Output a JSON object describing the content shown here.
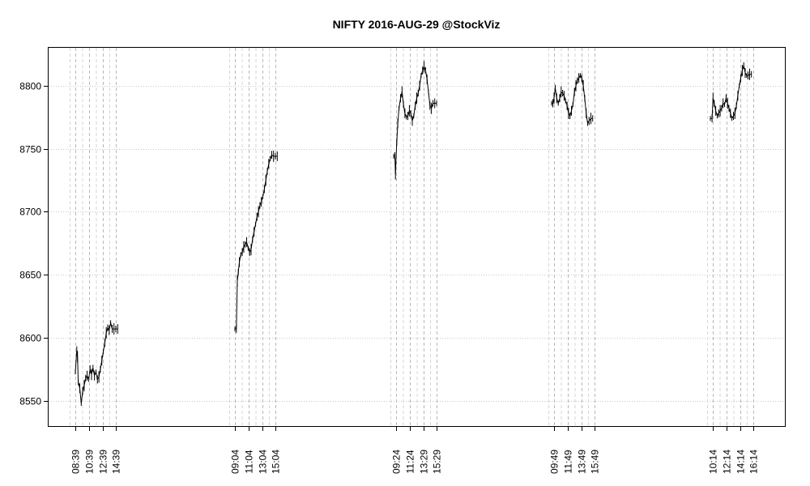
{
  "chart_data": {
    "type": "line",
    "style": "high-low price bars (intraday)",
    "title": "NIFTY 2016-AUG-29 @StockViz",
    "xlabel": "",
    "ylabel": "",
    "ylim": [
      8530,
      8830
    ],
    "yticks": [
      8550,
      8600,
      8650,
      8700,
      8750,
      8800
    ],
    "grid": true,
    "sessions": [
      {
        "labels": [
          "08:39",
          "10:39",
          "12:39",
          "14:39"
        ],
        "points": [
          [
            0.0,
            8573
          ],
          [
            1.2,
            8590
          ],
          [
            1.8,
            8585
          ],
          [
            2.4,
            8565
          ],
          [
            3.6,
            8560
          ],
          [
            4.8,
            8548
          ],
          [
            6.0,
            8558
          ],
          [
            7.2,
            8562
          ],
          [
            8.4,
            8568
          ],
          [
            9.6,
            8570
          ],
          [
            10.8,
            8567
          ],
          [
            12.0,
            8575
          ],
          [
            13.2,
            8571
          ],
          [
            14.4,
            8576
          ],
          [
            15.6,
            8570
          ],
          [
            16.8,
            8573
          ],
          [
            18.0,
            8567
          ],
          [
            19.2,
            8569
          ],
          [
            20.4,
            8575
          ],
          [
            21.6,
            8582
          ],
          [
            22.8,
            8589
          ],
          [
            24.0,
            8596
          ],
          [
            25.2,
            8604
          ],
          [
            26.4,
            8608
          ],
          [
            27.6,
            8606
          ],
          [
            28.8,
            8612
          ],
          [
            30.0,
            8607
          ],
          [
            31.5,
            8607
          ],
          [
            33.0,
            8607
          ],
          [
            34.5,
            8607
          ]
        ]
      },
      {
        "labels": [
          "09:04",
          "11:04",
          "13:04",
          "15:04"
        ],
        "points": [
          [
            0.0,
            8607
          ],
          [
            1.2,
            8607
          ],
          [
            2.0,
            8645
          ],
          [
            2.8,
            8652
          ],
          [
            3.6,
            8660
          ],
          [
            4.8,
            8666
          ],
          [
            6.0,
            8668
          ],
          [
            7.2,
            8672
          ],
          [
            8.4,
            8674
          ],
          [
            9.6,
            8676
          ],
          [
            10.8,
            8671
          ],
          [
            12.0,
            8668
          ],
          [
            13.2,
            8670
          ],
          [
            14.4,
            8678
          ],
          [
            15.6,
            8684
          ],
          [
            16.8,
            8690
          ],
          [
            18.0,
            8696
          ],
          [
            19.2,
            8700
          ],
          [
            20.4,
            8705
          ],
          [
            21.6,
            8708
          ],
          [
            22.8,
            8712
          ],
          [
            24.0,
            8718
          ],
          [
            25.2,
            8725
          ],
          [
            26.4,
            8732
          ],
          [
            27.6,
            8738
          ],
          [
            28.8,
            8742
          ],
          [
            30.0,
            8745
          ],
          [
            31.5,
            8744
          ],
          [
            33.0,
            8744
          ],
          [
            34.5,
            8744
          ]
        ]
      },
      {
        "labels": [
          "09:24",
          "11:24",
          "13:29",
          "15:29"
        ],
        "points": [
          [
            -2.0,
            8744
          ],
          [
            -1.0,
            8744
          ],
          [
            -0.5,
            8730
          ],
          [
            0.5,
            8755
          ],
          [
            1.4,
            8770
          ],
          [
            2.4,
            8782
          ],
          [
            3.6,
            8790
          ],
          [
            4.8,
            8795
          ],
          [
            6.0,
            8785
          ],
          [
            7.2,
            8778
          ],
          [
            8.4,
            8775
          ],
          [
            9.6,
            8776
          ],
          [
            10.8,
            8780
          ],
          [
            12.0,
            8778
          ],
          [
            13.2,
            8772
          ],
          [
            14.4,
            8776
          ],
          [
            15.6,
            8784
          ],
          [
            16.8,
            8790
          ],
          [
            18.0,
            8794
          ],
          [
            19.2,
            8800
          ],
          [
            20.4,
            8808
          ],
          [
            21.6,
            8812
          ],
          [
            22.8,
            8815
          ],
          [
            24.0,
            8812
          ],
          [
            25.2,
            8805
          ],
          [
            26.4,
            8795
          ],
          [
            27.6,
            8784
          ],
          [
            28.8,
            8782
          ],
          [
            30.0,
            8786
          ],
          [
            31.5,
            8786
          ],
          [
            33.0,
            8786
          ]
        ]
      },
      {
        "labels": [
          "09:49",
          "11:49",
          "13:49",
          "15:49"
        ],
        "points": [
          [
            -2.0,
            8786
          ],
          [
            -1.0,
            8786
          ],
          [
            0.0,
            8790
          ],
          [
            1.0,
            8798
          ],
          [
            2.2,
            8790
          ],
          [
            3.4,
            8786
          ],
          [
            4.6,
            8790
          ],
          [
            5.8,
            8795
          ],
          [
            7.0,
            8794
          ],
          [
            8.2,
            8792
          ],
          [
            9.4,
            8788
          ],
          [
            10.6,
            8784
          ],
          [
            11.8,
            8778
          ],
          [
            13.0,
            8776
          ],
          [
            14.2,
            8780
          ],
          [
            15.4,
            8785
          ],
          [
            16.6,
            8795
          ],
          [
            17.8,
            8800
          ],
          [
            19.0,
            8804
          ],
          [
            20.2,
            8806
          ],
          [
            21.4,
            8808
          ],
          [
            22.6,
            8806
          ],
          [
            23.8,
            8800
          ],
          [
            25.0,
            8790
          ],
          [
            26.2,
            8778
          ],
          [
            27.4,
            8770
          ],
          [
            28.6,
            8772
          ],
          [
            30.0,
            8774
          ],
          [
            31.5,
            8774
          ]
        ]
      },
      {
        "labels": [
          "10:14",
          "12:14",
          "14:14",
          "16:14"
        ],
        "points": [
          [
            -2.0,
            8774
          ],
          [
            -0.6,
            8774
          ],
          [
            0.2,
            8790
          ],
          [
            1.2,
            8786
          ],
          [
            2.4,
            8780
          ],
          [
            3.6,
            8776
          ],
          [
            4.8,
            8778
          ],
          [
            6.0,
            8780
          ],
          [
            7.2,
            8782
          ],
          [
            8.4,
            8786
          ],
          [
            9.6,
            8785
          ],
          [
            10.8,
            8790
          ],
          [
            12.0,
            8786
          ],
          [
            13.2,
            8782
          ],
          [
            14.4,
            8778
          ],
          [
            15.6,
            8774
          ],
          [
            16.8,
            8776
          ],
          [
            18.0,
            8778
          ],
          [
            19.2,
            8784
          ],
          [
            20.4,
            8792
          ],
          [
            21.6,
            8800
          ],
          [
            22.8,
            8806
          ],
          [
            24.0,
            8812
          ],
          [
            25.2,
            8816
          ],
          [
            26.4,
            8810
          ],
          [
            27.6,
            8808
          ],
          [
            28.8,
            8808
          ],
          [
            30.0,
            8809
          ],
          [
            31.5,
            8809
          ]
        ]
      }
    ]
  }
}
